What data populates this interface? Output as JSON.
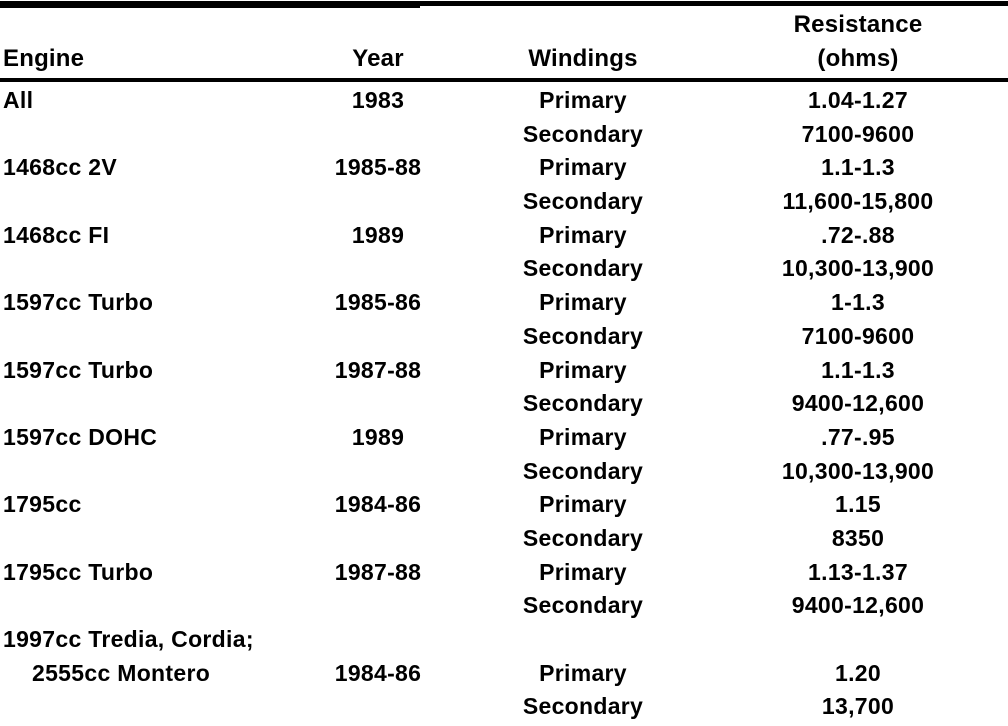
{
  "table": {
    "header": {
      "engine": "Engine",
      "year": "Year",
      "windings": "Windings",
      "resistance_line1": "Resistance",
      "resistance_line2": "(ohms)"
    },
    "rows": [
      [
        "All",
        "1983",
        "Primary",
        "1.04-1.27"
      ],
      [
        "",
        "",
        "Secondary",
        "7100-9600"
      ],
      [
        "1468cc 2V",
        "1985-88",
        "Primary",
        "1.1-1.3"
      ],
      [
        "",
        "",
        "Secondary",
        "11,600-15,800"
      ],
      [
        "1468cc FI",
        "1989",
        "Primary",
        ".72-.88"
      ],
      [
        "",
        "",
        "Secondary",
        "10,300-13,900"
      ],
      [
        "1597cc Turbo",
        "1985-86",
        "Primary",
        "1-1.3"
      ],
      [
        "",
        "",
        "Secondary",
        "7100-9600"
      ],
      [
        "1597cc Turbo",
        "1987-88",
        "Primary",
        "1.1-1.3"
      ],
      [
        "",
        "",
        "Secondary",
        "9400-12,600"
      ],
      [
        "1597cc DOHC",
        "1989",
        "Primary",
        ".77-.95"
      ],
      [
        "",
        "",
        "Secondary",
        "10,300-13,900"
      ],
      [
        "1795cc",
        "1984-86",
        "Primary",
        "1.15"
      ],
      [
        "",
        "",
        "Secondary",
        "8350"
      ],
      [
        "1795cc Turbo",
        "1987-88",
        "Primary",
        "1.13-1.37"
      ],
      [
        "",
        "",
        "Secondary",
        "9400-12,600"
      ],
      [
        "1997cc Tredia, Cordia;",
        "",
        "",
        ""
      ],
      [
        "2555cc Montero",
        "1984-86",
        "Primary",
        "1.20"
      ],
      [
        "",
        "",
        "Secondary",
        "13,700"
      ]
    ]
  }
}
